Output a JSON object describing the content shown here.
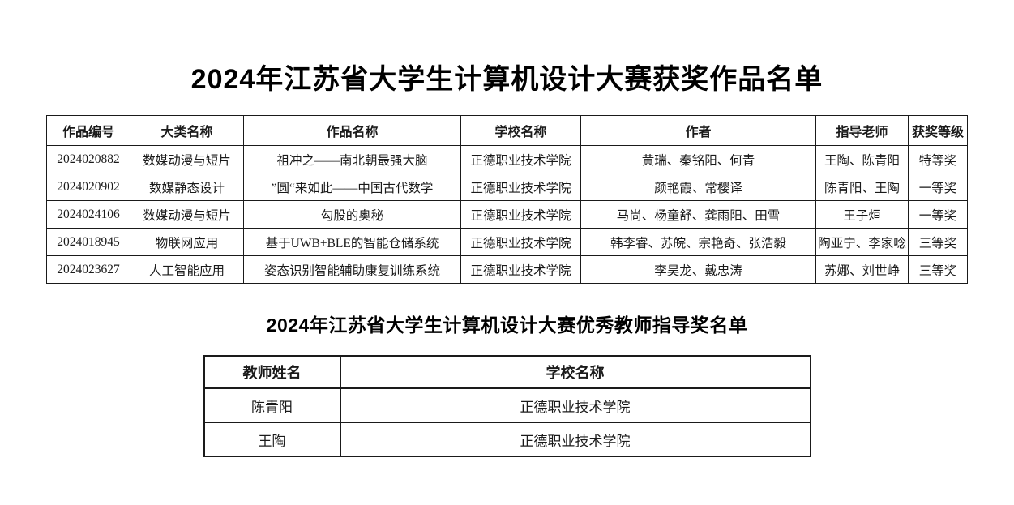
{
  "page": {
    "title_awards": "2024年江苏省大学生计算机设计大赛获奖作品名单",
    "title_teachers": "2024年江苏省大学生计算机设计大赛优秀教师指导奖名单"
  },
  "awards_table": {
    "headers": [
      "作品编号",
      "大类名称",
      "作品名称",
      "学校名称",
      "作者",
      "指导老师",
      "获奖等级"
    ],
    "rows": [
      [
        "2024020882",
        "数媒动漫与短片",
        "祖冲之——南北朝最强大脑",
        "正德职业技术学院",
        "黄瑞、秦铭阳、何青",
        "王陶、陈青阳",
        "特等奖"
      ],
      [
        "2024020902",
        "数媒静态设计",
        "”圆“来如此——中国古代数学",
        "正德职业技术学院",
        "颜艳霞、常樱译",
        "陈青阳、王陶",
        "一等奖"
      ],
      [
        "2024024106",
        "数媒动漫与短片",
        "勾股的奥秘",
        "正德职业技术学院",
        "马尚、杨童舒、龚雨阳、田雪",
        "王子烜",
        "一等奖"
      ],
      [
        "2024018945",
        "物联网应用",
        "基于UWB+BLE的智能仓储系统",
        "正德职业技术学院",
        "韩李睿、苏皖、宗艳奇、张浩毅",
        "陶亚宁、李家唸",
        "三等奖"
      ],
      [
        "2024023627",
        "人工智能应用",
        "姿态识别智能辅助康复训练系统",
        "正德职业技术学院",
        "李昊龙、戴忠涛",
        "苏娜、刘世峥",
        "三等奖"
      ]
    ]
  },
  "teacher_table": {
    "headers": [
      "教师姓名",
      "学校名称"
    ],
    "rows": [
      [
        "陈青阳",
        "正德职业技术学院"
      ],
      [
        "王陶",
        "正德职业技术学院"
      ]
    ]
  },
  "colors": {
    "background": "#ffffff",
    "text": "#1a1a1a",
    "border": "#1a1a1a"
  }
}
